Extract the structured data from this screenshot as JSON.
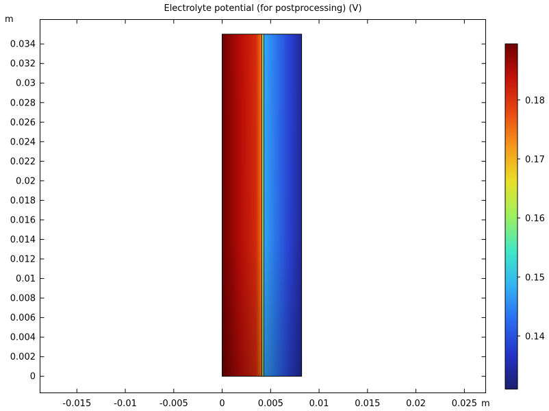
{
  "chart_data": {
    "type": "heatmap",
    "title": "Electrolyte potential (for postprocessing) (V)",
    "x_unit": "m",
    "y_unit": "m",
    "xlim": [
      -0.0188,
      0.0272
    ],
    "ylim": [
      -0.0017,
      0.0365
    ],
    "x_ticks": [
      -0.015,
      -0.01,
      -0.005,
      0,
      0.005,
      0.01,
      0.015,
      0.02,
      0.025
    ],
    "x_tick_labels": [
      "-0.015",
      "-0.01",
      "-0.005",
      "0",
      "0.005",
      "0.01",
      "0.015",
      "0.02",
      "0.025"
    ],
    "y_ticks": [
      0,
      0.002,
      0.004,
      0.006,
      0.008,
      0.01,
      0.012,
      0.014,
      0.016,
      0.018,
      0.02,
      0.022,
      0.024,
      0.026,
      0.028,
      0.03,
      0.032,
      0.034
    ],
    "y_tick_labels": [
      "0",
      "0.002",
      "0.004",
      "0.006",
      "0.008",
      "0.01",
      "0.012",
      "0.014",
      "0.016",
      "0.018",
      "0.02",
      "0.022",
      "0.024",
      "0.026",
      "0.028",
      "0.03",
      "0.032",
      "0.034"
    ],
    "domain": {
      "x": [
        0,
        0.0082
      ],
      "y": [
        0,
        0.035
      ]
    },
    "separator": {
      "x": [
        0.0041,
        0.0043
      ]
    },
    "field_profile": [
      {
        "x": 0.0,
        "value": 0.1895
      },
      {
        "x": 0.0041,
        "value": 0.176
      },
      {
        "x": 0.0042,
        "value": 0.16
      },
      {
        "x": 0.0043,
        "value": 0.15
      },
      {
        "x": 0.0082,
        "value": 0.131
      }
    ],
    "colorbar": {
      "range": [
        0.131,
        0.1895
      ],
      "ticks": [
        0.14,
        0.15,
        0.16,
        0.17,
        0.18
      ],
      "tick_labels": [
        "0.14",
        "0.15",
        "0.16",
        "0.17",
        "0.18"
      ],
      "colormap": [
        "#1a1f6e",
        "#2433c6",
        "#2b6cf0",
        "#33b2f3",
        "#40e8c7",
        "#9df060",
        "#e8e02a",
        "#f59a1c",
        "#e84a13",
        "#c4120c",
        "#700000"
      ]
    }
  }
}
